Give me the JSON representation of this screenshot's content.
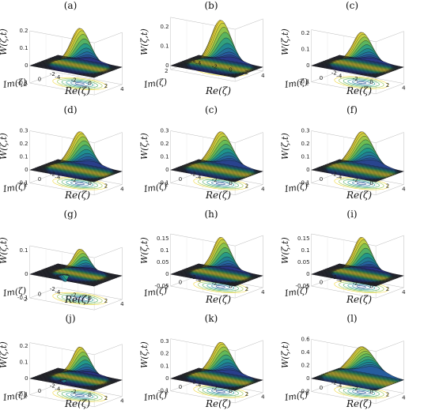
{
  "figure": {
    "zaxis_label": "W(ζ,t)",
    "real_axis_label": "Re(ζ)",
    "imag_axis_label": "Im(ζ)",
    "panels": [
      {
        "label": "(a)",
        "zticks": [
          "0.2",
          "0.1",
          "0",
          "-0.1"
        ],
        "zmin": -0.1,
        "zmax": 0.2,
        "peak": 0.22,
        "dip": -0.03,
        "spread": 0.36,
        "xticks": [
          "-4",
          "-2",
          "0",
          "2",
          "4"
        ],
        "yticks": [
          "2",
          "0",
          "-2"
        ]
      },
      {
        "label": "(b)",
        "zticks": [
          "0.2",
          "0.1",
          "0"
        ],
        "zmin": -0.02,
        "zmax": 0.25,
        "peak": 0.24,
        "dip": -0.02,
        "spread": 0.33,
        "xticks": [
          "-4",
          "-2",
          "0",
          "2",
          "4"
        ],
        "yticks": [
          "2",
          "0",
          "-2"
        ]
      },
      {
        "label": "(c)",
        "zticks": [
          "0.2",
          "0.1",
          "0",
          "-0.1"
        ],
        "zmin": -0.1,
        "zmax": 0.22,
        "peak": 0.21,
        "dip": -0.05,
        "spread": 0.33,
        "xticks": [
          "-4",
          "-2",
          "0",
          "2",
          "4"
        ],
        "yticks": [
          "2",
          "0",
          "-2"
        ]
      },
      {
        "label": "(d)",
        "zticks": [
          "0.3",
          "0.2",
          "0.1",
          "0",
          "-0.1"
        ],
        "zmin": -0.1,
        "zmax": 0.3,
        "peak": 0.3,
        "dip": -0.07,
        "spread": 0.3,
        "xticks": [
          "-4",
          "-2",
          "0",
          "2",
          "4"
        ],
        "yticks": [
          "2",
          "0",
          "-2"
        ]
      },
      {
        "label": "(c)",
        "zticks": [
          "0.3",
          "0.2",
          "0.1",
          "0",
          "-0.1"
        ],
        "zmin": -0.1,
        "zmax": 0.3,
        "peak": 0.3,
        "dip": -0.08,
        "spread": 0.28,
        "xticks": [
          "-4",
          "-2",
          "0",
          "2",
          "4"
        ],
        "yticks": [
          "2",
          "0",
          "-2"
        ]
      },
      {
        "label": "(f)",
        "zticks": [
          "0.3",
          "0.2",
          "0.1",
          "0",
          "-0.1"
        ],
        "zmin": -0.1,
        "zmax": 0.3,
        "peak": 0.3,
        "dip": -0.08,
        "spread": 0.27,
        "xticks": [
          "-4",
          "-2",
          "0",
          "2",
          "4"
        ],
        "yticks": [
          "2",
          "0",
          "-2"
        ]
      },
      {
        "label": "(g)",
        "zticks": [
          "0.1",
          "0",
          "-0.1"
        ],
        "zmin": -0.1,
        "zmax": 0.12,
        "peak": 0.11,
        "dip": -0.06,
        "spread": 0.42,
        "xticks": [
          "-4",
          "-2",
          "0",
          "2",
          "4"
        ],
        "yticks": [
          "2",
          "0",
          "-2"
        ]
      },
      {
        "label": "(h)",
        "zticks": [
          "0.15",
          "0.1",
          "0.05",
          "0",
          "-0.05"
        ],
        "zmin": -0.05,
        "zmax": 0.17,
        "peak": 0.16,
        "dip": -0.05,
        "spread": 0.36,
        "xticks": [
          "-4",
          "-2",
          "0",
          "2",
          "4"
        ],
        "yticks": [
          "2",
          "0",
          "-2"
        ]
      },
      {
        "label": "(i)",
        "zticks": [
          "0.15",
          "0.1",
          "0.05",
          "0",
          "-0.05"
        ],
        "zmin": -0.05,
        "zmax": 0.17,
        "peak": 0.16,
        "dip": -0.04,
        "spread": 0.38,
        "xticks": [
          "-4",
          "-2",
          "0",
          "2",
          "4"
        ],
        "yticks": [
          "2",
          "0",
          "-2"
        ]
      },
      {
        "label": "(j)",
        "zticks": [
          "0.2",
          "0.1",
          "0",
          "-0.1"
        ],
        "zmin": -0.1,
        "zmax": 0.22,
        "peak": 0.2,
        "dip": -0.08,
        "spread": 0.38,
        "xticks": [
          "-4",
          "-2",
          "0",
          "2",
          "4"
        ],
        "yticks": [
          "2",
          "0",
          "-2"
        ]
      },
      {
        "label": "(k)",
        "zticks": [
          "0.3",
          "0.2",
          "0.1",
          "0",
          "-0.1"
        ],
        "zmin": -0.1,
        "zmax": 0.32,
        "peak": 0.3,
        "dip": -0.09,
        "spread": 0.3,
        "xticks": [
          "-4",
          "-2",
          "0",
          "2",
          "4"
        ],
        "yticks": [
          "2",
          "0",
          "-2"
        ]
      },
      {
        "label": "(l)",
        "zticks": [
          "0.6",
          "0.4",
          "0.2",
          "0",
          "-0.2"
        ],
        "zmin": -0.2,
        "zmax": 0.6,
        "peak": 0.5,
        "dip": -0.12,
        "spread": 0.2,
        "xticks": [
          "-4",
          "-2",
          "0",
          "2",
          "4"
        ],
        "yticks": [
          "2",
          "0",
          "-2"
        ]
      }
    ]
  }
}
